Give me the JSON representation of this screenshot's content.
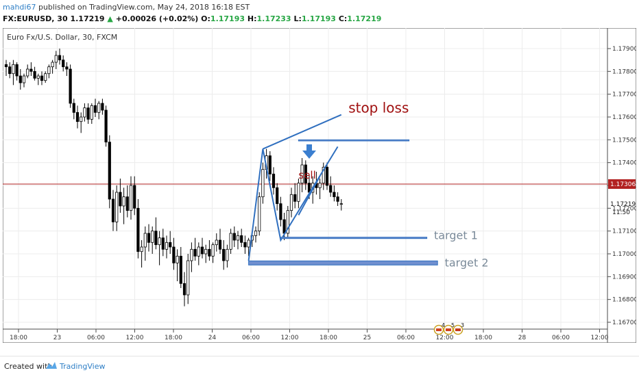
{
  "header": {
    "author": "mahdi67",
    "published": "published on TradingView.com, May 24, 2018 16:18 EST",
    "symbol": "FX:EURUSD, 30",
    "last": "1.17219",
    "arrow": "▲",
    "change": "+0.00026 (+0.02%)",
    "o_label": "O:",
    "o_value": "1.17193",
    "h_label": "H:",
    "h_value": "1.17233",
    "l_label": "L:",
    "l_value": "1.17193",
    "c_label": "C:",
    "c_value": "1.17219"
  },
  "footer": {
    "created_with": "Created with",
    "brand": "TradingView"
  },
  "colors": {
    "bull": "#ffffff",
    "bear": "#000000",
    "drawing": "#2f6fbf",
    "zone_fill": "#6f8fcf",
    "price_line": "#b22222",
    "stop_text": "#a01010",
    "target_text": "#7a8a99"
  },
  "chart_data": {
    "type": "candlestick",
    "title": "Euro Fx/U.S. Dollar, 30, FXCM",
    "ylim": [
      1.1667,
      1.1799
    ],
    "yticks": [
      "1.17900",
      "1.17800",
      "1.17700",
      "1.17600",
      "1.17500",
      "1.17400",
      "1.17300",
      "1.17200",
      "1.17100",
      "1.17000",
      "1.16900",
      "1.16800",
      "1.16700"
    ],
    "xticks": [
      "18:00",
      "23",
      "06:00",
      "12:00",
      "18:00",
      "24",
      "06:00",
      "12:00",
      "18:00",
      "25",
      "06:00",
      "12:00",
      "18:00",
      "28",
      "06:00",
      "12:00"
    ],
    "current_price_label": "1.17306",
    "current_price": 1.17306,
    "last_price_label": "1.17219",
    "last_price": 1.17219,
    "countdown": "11:50",
    "candles": [
      [
        1.1783,
        1.1785,
        1.1778,
        1.1782
      ],
      [
        1.1782,
        1.1784,
        1.1777,
        1.1779
      ],
      [
        1.1779,
        1.1785,
        1.1774,
        1.1783
      ],
      [
        1.1783,
        1.1784,
        1.1776,
        1.1778
      ],
      [
        1.1778,
        1.1781,
        1.1772,
        1.1775
      ],
      [
        1.1775,
        1.1779,
        1.1773,
        1.1778
      ],
      [
        1.1778,
        1.1783,
        1.1777,
        1.1781
      ],
      [
        1.1781,
        1.1784,
        1.1778,
        1.178
      ],
      [
        1.178,
        1.1782,
        1.1776,
        1.1777
      ],
      [
        1.1777,
        1.1779,
        1.1774,
        1.1778
      ],
      [
        1.1778,
        1.178,
        1.1774,
        1.1776
      ],
      [
        1.1776,
        1.178,
        1.1775,
        1.1779
      ],
      [
        1.1779,
        1.1783,
        1.1777,
        1.1782
      ],
      [
        1.1782,
        1.1785,
        1.1779,
        1.1784
      ],
      [
        1.1784,
        1.1789,
        1.1781,
        1.1787
      ],
      [
        1.1787,
        1.179,
        1.1783,
        1.1785
      ],
      [
        1.1785,
        1.1787,
        1.178,
        1.1782
      ],
      [
        1.1782,
        1.1784,
        1.1778,
        1.1781
      ],
      [
        1.1781,
        1.1783,
        1.1764,
        1.1766
      ],
      [
        1.1766,
        1.1768,
        1.1759,
        1.1762
      ],
      [
        1.1762,
        1.1765,
        1.1755,
        1.1758
      ],
      [
        1.1758,
        1.1762,
        1.1753,
        1.176
      ],
      [
        1.176,
        1.1766,
        1.1758,
        1.1764
      ],
      [
        1.1764,
        1.1766,
        1.1757,
        1.1759
      ],
      [
        1.1759,
        1.1766,
        1.1757,
        1.1765
      ],
      [
        1.1765,
        1.1768,
        1.176,
        1.1762
      ],
      [
        1.1762,
        1.1767,
        1.1759,
        1.1766
      ],
      [
        1.1766,
        1.1768,
        1.1761,
        1.1763
      ],
      [
        1.1763,
        1.1765,
        1.1747,
        1.1749
      ],
      [
        1.1749,
        1.1752,
        1.172,
        1.1724
      ],
      [
        1.1724,
        1.1728,
        1.171,
        1.1714
      ],
      [
        1.1714,
        1.173,
        1.171,
        1.1727
      ],
      [
        1.1727,
        1.1733,
        1.1718,
        1.1721
      ],
      [
        1.1721,
        1.1729,
        1.1713,
        1.1725
      ],
      [
        1.1725,
        1.173,
        1.1716,
        1.1719
      ],
      [
        1.1719,
        1.1734,
        1.1715,
        1.173
      ],
      [
        1.173,
        1.1734,
        1.1717,
        1.172
      ],
      [
        1.172,
        1.1724,
        1.1698,
        1.1701
      ],
      [
        1.1701,
        1.1706,
        1.1694,
        1.1703
      ],
      [
        1.1703,
        1.1712,
        1.1697,
        1.1709
      ],
      [
        1.1709,
        1.1713,
        1.1701,
        1.1705
      ],
      [
        1.1705,
        1.1712,
        1.17,
        1.171
      ],
      [
        1.171,
        1.1716,
        1.1702,
        1.1704
      ],
      [
        1.1704,
        1.171,
        1.1695,
        1.1707
      ],
      [
        1.1707,
        1.1711,
        1.1699,
        1.1702
      ],
      [
        1.1702,
        1.1708,
        1.1698,
        1.1705
      ],
      [
        1.1705,
        1.171,
        1.17,
        1.1703
      ],
      [
        1.1703,
        1.1707,
        1.1693,
        1.1696
      ],
      [
        1.1696,
        1.1702,
        1.1688,
        1.1699
      ],
      [
        1.1699,
        1.1703,
        1.1685,
        1.1687
      ],
      [
        1.1687,
        1.1692,
        1.1677,
        1.1682
      ],
      [
        1.1682,
        1.17,
        1.1678,
        1.1697
      ],
      [
        1.1697,
        1.1705,
        1.1692,
        1.1702
      ],
      [
        1.1702,
        1.1707,
        1.1697,
        1.1699
      ],
      [
        1.1699,
        1.1705,
        1.1695,
        1.1703
      ],
      [
        1.1703,
        1.1707,
        1.1698,
        1.17
      ],
      [
        1.17,
        1.1704,
        1.1696,
        1.1702
      ],
      [
        1.1702,
        1.1706,
        1.1697,
        1.1699
      ],
      [
        1.1699,
        1.1705,
        1.1696,
        1.1704
      ],
      [
        1.1704,
        1.1709,
        1.1701,
        1.1706
      ],
      [
        1.1706,
        1.1711,
        1.17,
        1.1702
      ],
      [
        1.1702,
        1.1706,
        1.1693,
        1.1697
      ],
      [
        1.1697,
        1.1704,
        1.1694,
        1.1702
      ],
      [
        1.1702,
        1.1711,
        1.17,
        1.1709
      ],
      [
        1.1709,
        1.1712,
        1.1703,
        1.1706
      ],
      [
        1.1706,
        1.171,
        1.1702,
        1.1708
      ],
      [
        1.1708,
        1.1711,
        1.1703,
        1.1705
      ],
      [
        1.1705,
        1.1708,
        1.17,
        1.1703
      ],
      [
        1.1703,
        1.1707,
        1.1699,
        1.1706
      ],
      [
        1.1706,
        1.171,
        1.1703,
        1.1708
      ],
      [
        1.1708,
        1.1712,
        1.1705,
        1.171
      ],
      [
        1.171,
        1.1727,
        1.1708,
        1.1725
      ],
      [
        1.1725,
        1.174,
        1.1722,
        1.1737
      ],
      [
        1.1737,
        1.1746,
        1.1733,
        1.1743
      ],
      [
        1.1743,
        1.1745,
        1.1732,
        1.1735
      ],
      [
        1.1735,
        1.1738,
        1.1726,
        1.1729
      ],
      [
        1.1729,
        1.1731,
        1.1719,
        1.1722
      ],
      [
        1.1722,
        1.1725,
        1.1712,
        1.1715
      ],
      [
        1.1715,
        1.1718,
        1.1706,
        1.1709
      ],
      [
        1.1709,
        1.1721,
        1.1707,
        1.1719
      ],
      [
        1.1719,
        1.1729,
        1.1716,
        1.1726
      ],
      [
        1.1726,
        1.1731,
        1.172,
        1.1723
      ],
      [
        1.1723,
        1.1733,
        1.172,
        1.1731
      ],
      [
        1.1731,
        1.1742,
        1.1727,
        1.1739
      ],
      [
        1.1739,
        1.1741,
        1.1728,
        1.1731
      ],
      [
        1.1731,
        1.1735,
        1.1724,
        1.1727
      ],
      [
        1.1727,
        1.1734,
        1.1722,
        1.1731
      ],
      [
        1.1731,
        1.1736,
        1.1726,
        1.1729
      ],
      [
        1.1729,
        1.1733,
        1.1724,
        1.1731
      ],
      [
        1.1731,
        1.174,
        1.1728,
        1.1738
      ],
      [
        1.1738,
        1.174,
        1.1728,
        1.173
      ],
      [
        1.173,
        1.1734,
        1.1725,
        1.1727
      ],
      [
        1.1727,
        1.173,
        1.1723,
        1.1725
      ],
      [
        1.1725,
        1.1727,
        1.1721,
        1.1723
      ],
      [
        1.1722,
        1.1724,
        1.1719,
        1.1722
      ]
    ],
    "annotations": {
      "stop_loss_label": "stop loss",
      "stop_loss_price": 1.175,
      "sell_label": "sell",
      "target1_label": "target 1",
      "target1_price": 1.1707,
      "target2_label": "target 2",
      "target2_price": 1.1696,
      "event_counts": [
        "4",
        "5",
        "3"
      ]
    }
  }
}
